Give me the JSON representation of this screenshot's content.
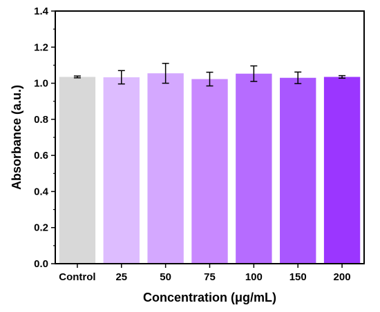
{
  "chart_data": {
    "type": "bar",
    "title": "",
    "xlabel": "Concentration (μg/mL)",
    "ylabel": "Absorbance (a.u.)",
    "ylim": [
      0,
      1.4
    ],
    "yticks": [
      "0.0",
      "0.2",
      "0.4",
      "0.6",
      "0.8",
      "1.0",
      "1.2",
      "1.4"
    ],
    "categories": [
      "Control",
      "25",
      "50",
      "75",
      "100",
      "150",
      "200"
    ],
    "values": [
      1.035,
      1.033,
      1.055,
      1.023,
      1.053,
      1.03,
      1.035
    ],
    "errors": [
      0.005,
      0.037,
      0.055,
      0.038,
      0.043,
      0.032,
      0.007
    ],
    "colors": [
      "#d8d8d8",
      "#ddbcff",
      "#d4a8ff",
      "#c889ff",
      "#b66cff",
      "#a957ff",
      "#9b36ff"
    ],
    "grid": false,
    "legend": "none"
  }
}
